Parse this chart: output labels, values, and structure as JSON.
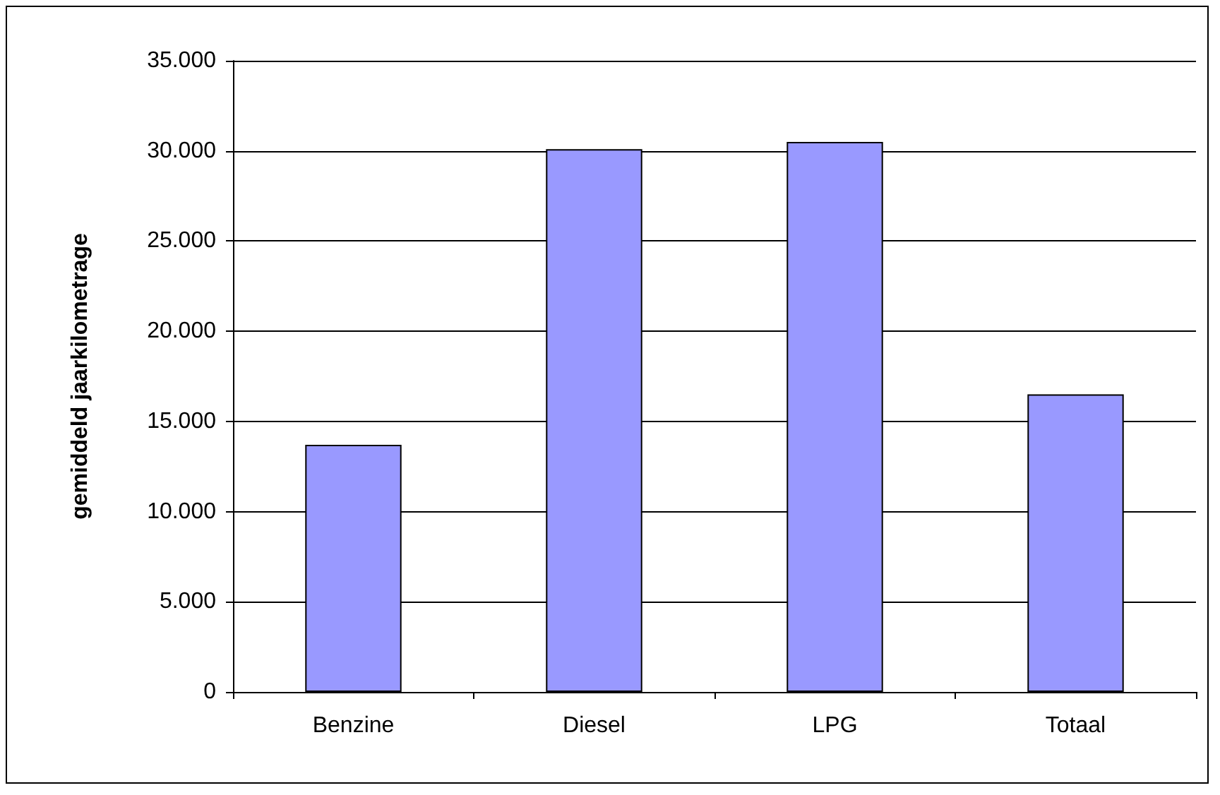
{
  "chart_data": {
    "type": "bar",
    "ylabel": "gemiddeld jaarkilometrage",
    "categories": [
      "Benzine",
      "Diesel",
      "LPG",
      "Totaal"
    ],
    "values": [
      13700,
      30100,
      30500,
      16500
    ],
    "color": "#9999ff",
    "ylim": [
      0,
      35000
    ],
    "yticks": [
      {
        "value": 0,
        "label": "0"
      },
      {
        "value": 5000,
        "label": "5.000"
      },
      {
        "value": 10000,
        "label": "10.000"
      },
      {
        "value": 15000,
        "label": "15.000"
      },
      {
        "value": 20000,
        "label": "20.000"
      },
      {
        "value": 25000,
        "label": "25.000"
      },
      {
        "value": 30000,
        "label": "30.000"
      },
      {
        "value": 35000,
        "label": "35.000"
      }
    ],
    "grid": "y"
  }
}
